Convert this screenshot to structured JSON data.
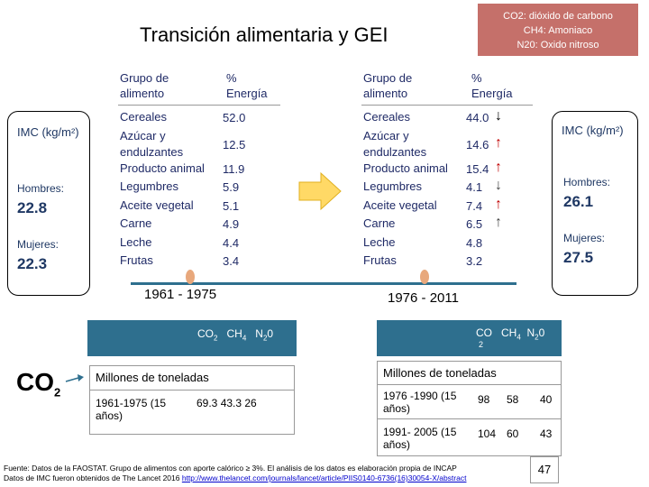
{
  "title": "Transición alimentaria y GEI",
  "legend": [
    "CO2: dióxido de carbono",
    "CH4: Amoniaco",
    "N20: Oxido nitroso"
  ],
  "left_imc": {
    "header": "IMC (kg/m²)",
    "men_label": "Hombres:",
    "men_value": "22.8",
    "women_label": "Mujeres:",
    "women_value": "22.3"
  },
  "right_imc": {
    "header": "IMC (kg/m²)",
    "men_label": "Hombres:",
    "men_value": "26.1",
    "women_label": "Mujeres:",
    "women_value": "27.5"
  },
  "food_header": {
    "group": "Grupo de alimento",
    "energy": "% Energía"
  },
  "foods_left": [
    {
      "name": "Cereales",
      "value": "52.0"
    },
    {
      "name": "Azúcar y endulzantes",
      "value": "12.5"
    },
    {
      "name": "Producto animal",
      "value": "11.9"
    },
    {
      "name": "Legumbres",
      "value": "5.9"
    },
    {
      "name": "Aceite vegetal",
      "value": "5.1"
    },
    {
      "name": "Carne",
      "value": "4.9"
    },
    {
      "name": "Leche",
      "value": "4.4"
    },
    {
      "name": "Frutas",
      "value": "3.4"
    }
  ],
  "foods_right": [
    {
      "name": "Cereales",
      "value": "44.0",
      "trend": "down"
    },
    {
      "name": "Azúcar y endulzantes",
      "value": "14.6",
      "trend": "up-red"
    },
    {
      "name": "Producto animal",
      "value": "15.4",
      "trend": "up-red"
    },
    {
      "name": "Legumbres",
      "value": "4.1",
      "trend": "down-light"
    },
    {
      "name": "Aceite vegetal",
      "value": "7.4",
      "trend": "up-red"
    },
    {
      "name": "Carne",
      "value": "6.5",
      "trend": "up-light"
    },
    {
      "name": "Leche",
      "value": "4.8",
      "trend": ""
    },
    {
      "name": "Frutas",
      "value": "3.2",
      "trend": ""
    }
  ],
  "timeline": {
    "left_period": "1961 - 1975",
    "right_period": "1976 - 2011"
  },
  "gases": {
    "co2": "CO",
    "co2_sub": "2",
    "ch4": "CH",
    "ch4_sub": "4",
    "n2o": "N",
    "n2o_sub": "2",
    "n2o_tail": "0"
  },
  "co2_big": {
    "main": "CO",
    "sub": "2"
  },
  "left_table": {
    "unit": "Millones de toneladas",
    "period": "1961-1975 (15 años)",
    "values": "69.3   43.3   26"
  },
  "right_table": {
    "unit": "Millones de toneladas",
    "rows": [
      {
        "period": "1976 -1990 (15 años)",
        "co2": "98",
        "ch4": "58",
        "n2o": "40"
      },
      {
        "period": "1991- 2005 (15 años)",
        "co2": "104",
        "ch4": "60",
        "n2o": "43"
      }
    ]
  },
  "footnote": {
    "line1": "Fuente: Datos de la FAOSTAT. Grupo de alimentos con aporte calórico ≥ 3%. El análisis de los datos es elaboración propia de INCAP",
    "line2": "Datos de IMC fueron obtenidos de The Lancet 2016 ",
    "link": "http://www.thelancet.com/journals/lancet/article/PIIS0140-6736(16)30054-X/abstract"
  },
  "page_number": "47",
  "colors": {
    "accent": "#2e6f8e",
    "red_arrow": "#c00000",
    "legend_bg": "#c5706a",
    "timeline": "#2e6f8e",
    "marker": "#e8a87c"
  }
}
